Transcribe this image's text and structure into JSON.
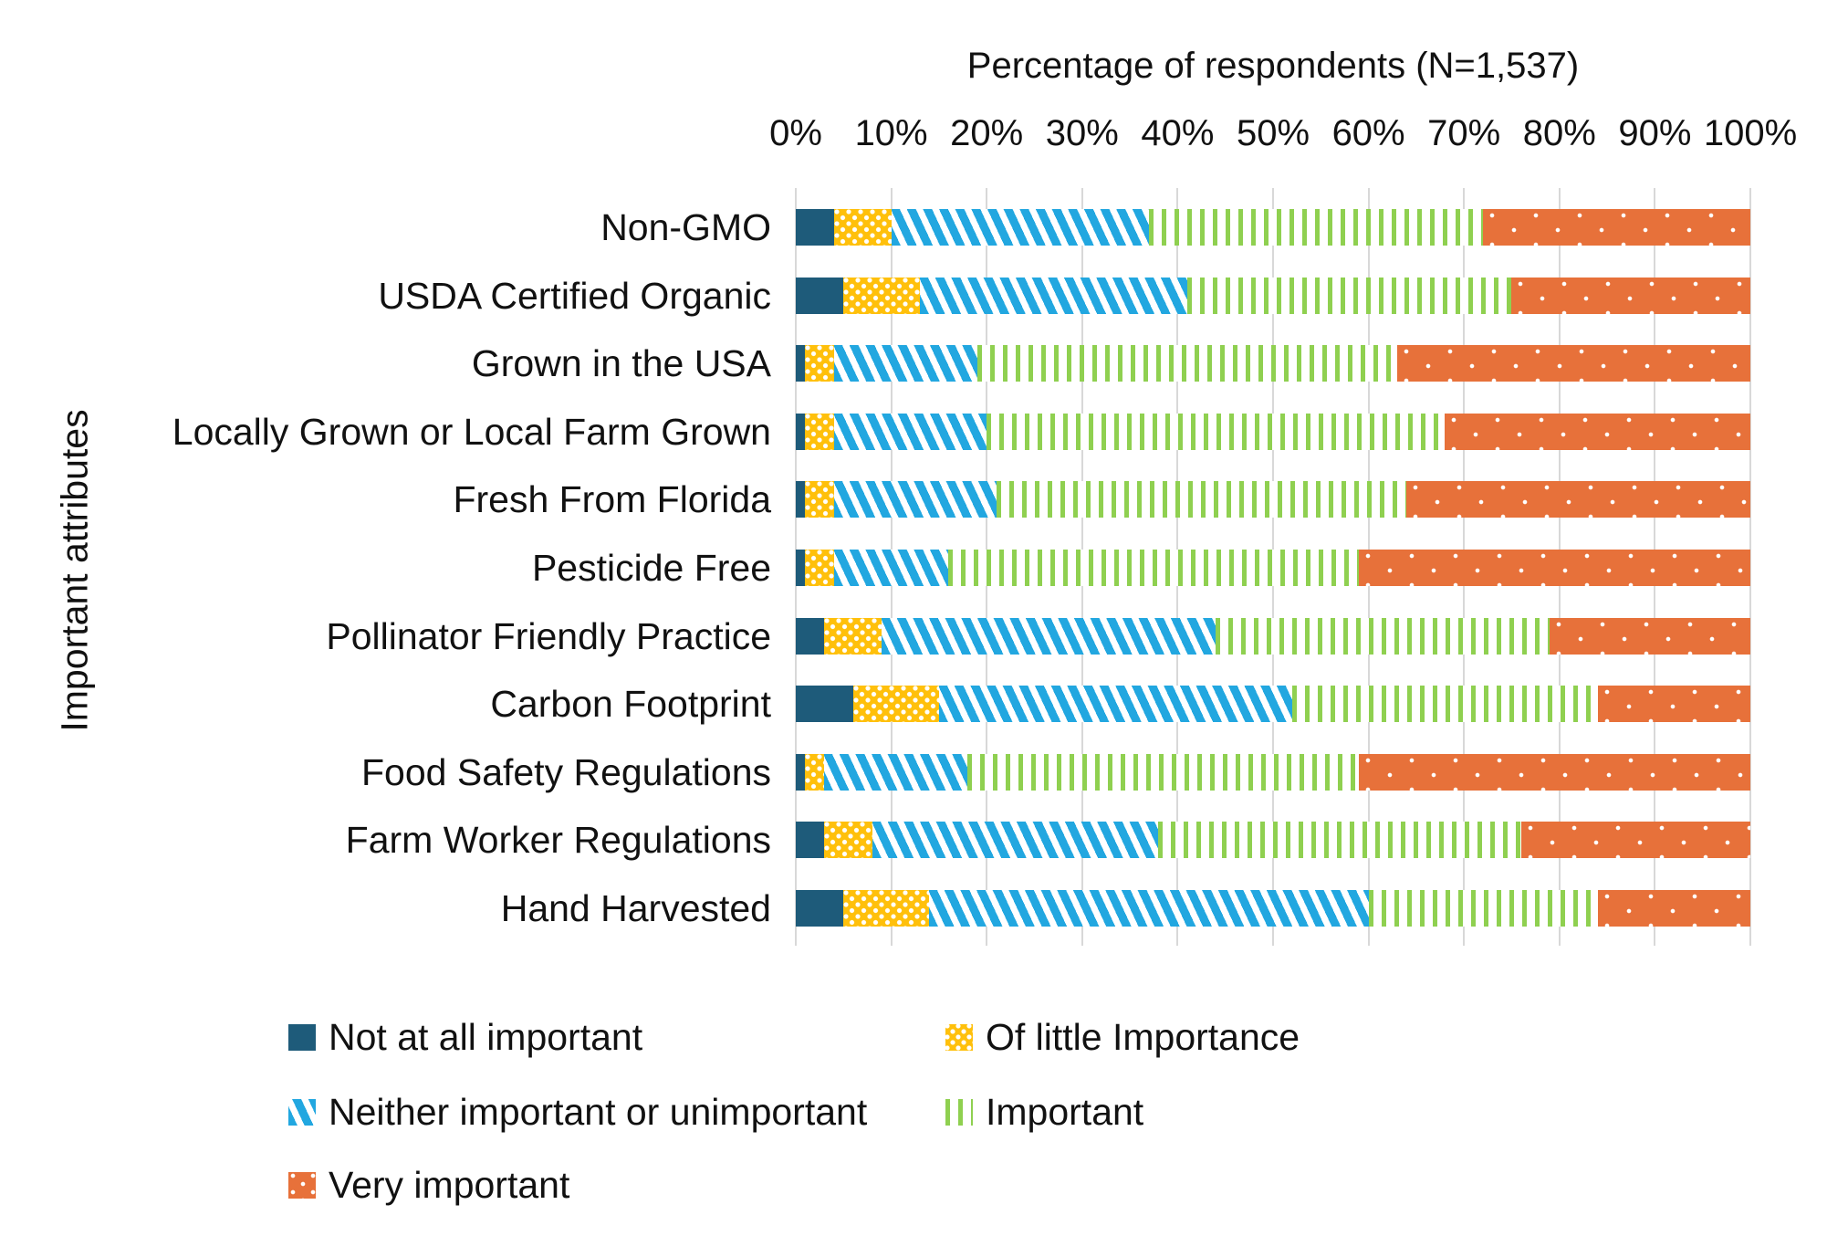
{
  "title": "Percentage of respondents (N=1,537)",
  "y_axis_title": "Important attributes",
  "chart_data": {
    "type": "bar",
    "orientation": "horizontal",
    "stacked": true,
    "title": "Percentage of respondents (N=1,537)",
    "xlabel": "Percentage of respondents",
    "ylabel": "Important attributes",
    "xlim": [
      0,
      100
    ],
    "grid": true,
    "legend_position": "bottom",
    "x_ticks": [
      "0%",
      "10%",
      "20%",
      "30%",
      "40%",
      "50%",
      "60%",
      "70%",
      "80%",
      "90%",
      "100%"
    ],
    "categories": [
      "Non-GMO",
      "USDA Certified Organic",
      "Grown in the USA",
      "Locally Grown or Local Farm Grown",
      "Fresh From Florida",
      "Pesticide Free",
      "Pollinator Friendly Practice",
      "Carbon Footprint",
      "Food Safety Regulations",
      "Farm Worker Regulations",
      "Hand Harvested"
    ],
    "series": [
      {
        "name": "Not at all important",
        "color": "#1e5b7a",
        "pattern": "solid",
        "values": [
          4,
          5,
          1,
          1,
          1,
          1,
          3,
          6,
          1,
          3,
          5
        ]
      },
      {
        "name": "Of little Importance",
        "color": "#ffc00b",
        "pattern": "white-dots-dense",
        "values": [
          6,
          8,
          3,
          3,
          3,
          3,
          6,
          9,
          2,
          5,
          9
        ]
      },
      {
        "name": "Neither important or unimportant",
        "color": "#22a7e0",
        "pattern": "diagonal-stripes",
        "values": [
          27,
          28,
          15,
          16,
          17,
          12,
          35,
          37,
          15,
          30,
          46
        ]
      },
      {
        "name": "Important",
        "color": "#8fd050",
        "pattern": "vertical-lines",
        "values": [
          35,
          34,
          44,
          48,
          43,
          43,
          35,
          32,
          41,
          38,
          24
        ]
      },
      {
        "name": "Very important",
        "color": "#e7713a",
        "pattern": "white-dots-sparse",
        "values": [
          28,
          25,
          37,
          32,
          36,
          41,
          21,
          16,
          41,
          24,
          16
        ]
      }
    ]
  },
  "colors": {
    "gridline": "#d8d8d8",
    "text": "#111111",
    "background": "#ffffff"
  }
}
